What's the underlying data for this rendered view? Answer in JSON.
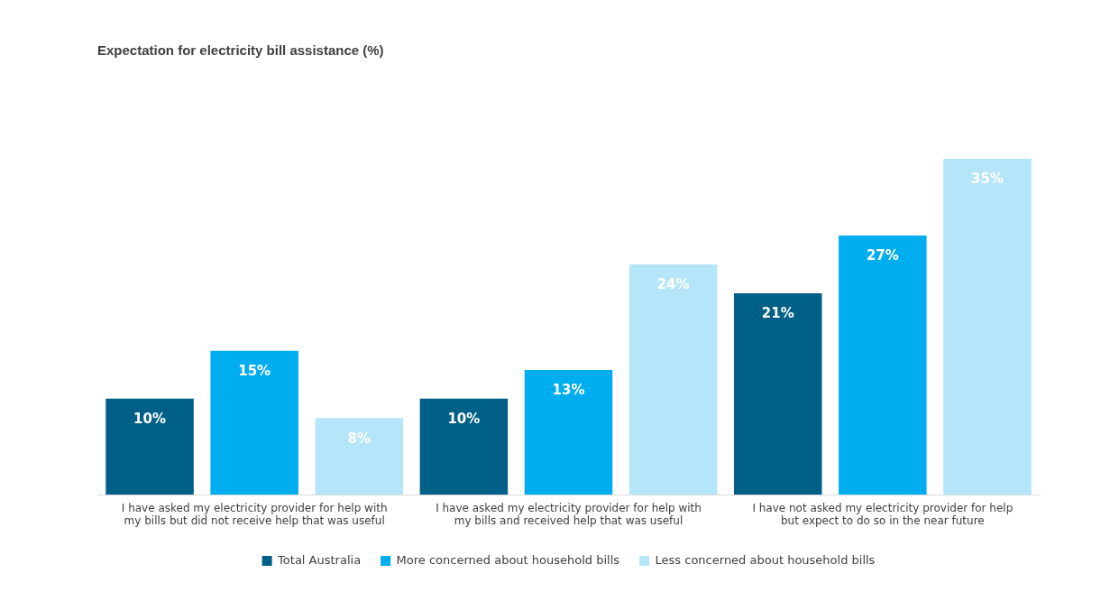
{
  "chart_data": {
    "type": "bar",
    "title": "Expectation for electricity bill assistance (%)",
    "categories": [
      "I have asked my electricity provider for help with my bills but did not receive help that was useful",
      "I have asked my electricity provider for help with my bills and received help that was useful",
      "I have not asked my electricity provider for help but expect to do so in the near future"
    ],
    "series": [
      {
        "name": "Total Australia",
        "color": "#005f87",
        "values": [
          10,
          10,
          21
        ],
        "value_labels": [
          "10%",
          "10%",
          "21%"
        ]
      },
      {
        "name": "More concerned about household bills",
        "color": "#00aeef",
        "values": [
          15,
          13,
          27
        ],
        "value_labels": [
          "15%",
          "13%",
          "27%"
        ]
      },
      {
        "name": "Less concerned about household bills",
        "color": "#b5e5f8",
        "values": [
          8,
          24,
          35
        ],
        "value_labels": [
          "8%",
          "24%",
          "35%"
        ]
      }
    ],
    "legend": "bottom",
    "grid": false,
    "tick_labels": "x"
  }
}
